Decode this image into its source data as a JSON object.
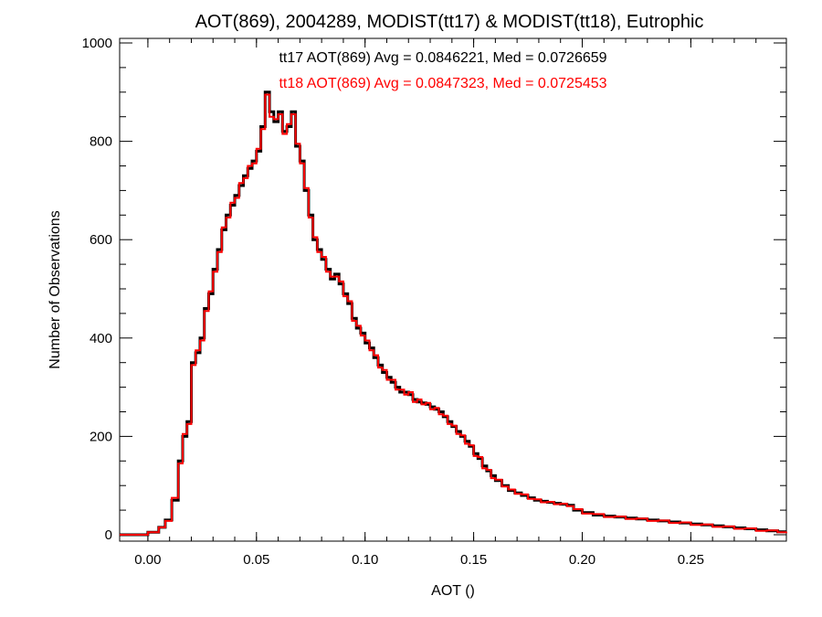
{
  "chart_data": {
    "type": "line",
    "step": true,
    "title": "AOT(869), 2004289, MODIST(tt17) & MODIST(tt18), Eutrophic",
    "xlabel": "AOT ()",
    "ylabel": "Number of Observations",
    "xlim": [
      -0.013,
      0.294
    ],
    "ylim": [
      0,
      1000
    ],
    "x_ticks": [
      0.0,
      0.05,
      0.1,
      0.15,
      0.2,
      0.25
    ],
    "x_tick_labels": [
      "0.00",
      "0.05",
      "0.10",
      "0.15",
      "0.20",
      "0.25"
    ],
    "y_ticks": [
      0,
      200,
      400,
      600,
      800,
      1000
    ],
    "y_tick_labels": [
      "0",
      "200",
      "400",
      "600",
      "800",
      "1000"
    ],
    "grid": false,
    "colors": {
      "tt17": "#000000",
      "tt18": "#ff0000"
    },
    "annotations": [
      {
        "text": "tt17 AOT(869) Avg = 0.0846221, Med = 0.0726659",
        "color": "#000000"
      },
      {
        "text": "tt18 AOT(869) Avg = 0.0847323, Med = 0.0725453",
        "color": "#ff0000"
      }
    ],
    "series": [
      {
        "key": "tt17",
        "color": "#000000",
        "x": [
          -0.013,
          -0.005,
          0.0,
          0.005,
          0.008,
          0.011,
          0.014,
          0.016,
          0.018,
          0.02,
          0.022,
          0.024,
          0.026,
          0.028,
          0.03,
          0.032,
          0.034,
          0.036,
          0.038,
          0.04,
          0.042,
          0.044,
          0.046,
          0.048,
          0.05,
          0.052,
          0.054,
          0.056,
          0.058,
          0.06,
          0.062,
          0.064,
          0.066,
          0.068,
          0.07,
          0.072,
          0.074,
          0.076,
          0.078,
          0.08,
          0.082,
          0.084,
          0.086,
          0.088,
          0.09,
          0.092,
          0.094,
          0.096,
          0.098,
          0.1,
          0.102,
          0.104,
          0.106,
          0.108,
          0.11,
          0.112,
          0.114,
          0.116,
          0.118,
          0.12,
          0.122,
          0.124,
          0.126,
          0.128,
          0.13,
          0.132,
          0.134,
          0.136,
          0.138,
          0.14,
          0.142,
          0.144,
          0.146,
          0.148,
          0.15,
          0.152,
          0.154,
          0.156,
          0.158,
          0.16,
          0.163,
          0.166,
          0.169,
          0.172,
          0.175,
          0.178,
          0.181,
          0.184,
          0.187,
          0.19,
          0.193,
          0.196,
          0.2,
          0.205,
          0.21,
          0.215,
          0.22,
          0.225,
          0.23,
          0.235,
          0.24,
          0.245,
          0.25,
          0.255,
          0.26,
          0.265,
          0.27,
          0.275,
          0.28,
          0.285,
          0.29,
          0.294
        ],
        "values": [
          0,
          0,
          5,
          15,
          30,
          70,
          150,
          200,
          230,
          350,
          370,
          400,
          460,
          490,
          540,
          580,
          620,
          650,
          670,
          690,
          710,
          730,
          745,
          760,
          780,
          830,
          900,
          860,
          840,
          860,
          820,
          830,
          860,
          790,
          760,
          700,
          650,
          600,
          580,
          560,
          540,
          520,
          530,
          510,
          490,
          470,
          440,
          420,
          410,
          390,
          380,
          360,
          345,
          330,
          320,
          310,
          300,
          290,
          290,
          285,
          275,
          270,
          268,
          265,
          260,
          255,
          250,
          240,
          230,
          220,
          210,
          200,
          190,
          180,
          165,
          155,
          140,
          130,
          120,
          110,
          100,
          90,
          85,
          80,
          75,
          70,
          68,
          66,
          64,
          62,
          60,
          50,
          45,
          40,
          38,
          36,
          34,
          32,
          30,
          28,
          26,
          24,
          22,
          20,
          18,
          16,
          14,
          12,
          10,
          8,
          6,
          6
        ]
      },
      {
        "key": "tt18",
        "color": "#ff0000",
        "x": [
          -0.013,
          -0.005,
          0.0,
          0.005,
          0.008,
          0.011,
          0.014,
          0.016,
          0.018,
          0.02,
          0.022,
          0.024,
          0.026,
          0.028,
          0.03,
          0.032,
          0.034,
          0.036,
          0.038,
          0.04,
          0.042,
          0.044,
          0.046,
          0.048,
          0.05,
          0.052,
          0.054,
          0.056,
          0.058,
          0.06,
          0.062,
          0.064,
          0.066,
          0.068,
          0.07,
          0.072,
          0.074,
          0.076,
          0.078,
          0.08,
          0.082,
          0.084,
          0.086,
          0.088,
          0.09,
          0.092,
          0.094,
          0.096,
          0.098,
          0.1,
          0.102,
          0.104,
          0.106,
          0.108,
          0.11,
          0.112,
          0.114,
          0.116,
          0.118,
          0.12,
          0.122,
          0.124,
          0.126,
          0.128,
          0.13,
          0.132,
          0.134,
          0.136,
          0.138,
          0.14,
          0.142,
          0.144,
          0.146,
          0.148,
          0.15,
          0.152,
          0.154,
          0.156,
          0.158,
          0.16,
          0.163,
          0.166,
          0.169,
          0.172,
          0.175,
          0.178,
          0.181,
          0.184,
          0.187,
          0.19,
          0.193,
          0.196,
          0.2,
          0.205,
          0.21,
          0.215,
          0.22,
          0.225,
          0.23,
          0.235,
          0.24,
          0.245,
          0.25,
          0.255,
          0.26,
          0.265,
          0.27,
          0.275,
          0.28,
          0.285,
          0.29,
          0.294
        ],
        "values": [
          0,
          0,
          5,
          15,
          28,
          75,
          145,
          205,
          225,
          345,
          375,
          395,
          455,
          495,
          535,
          575,
          625,
          645,
          675,
          685,
          715,
          725,
          750,
          755,
          785,
          825,
          895,
          850,
          845,
          855,
          815,
          835,
          855,
          795,
          755,
          705,
          645,
          605,
          575,
          565,
          535,
          525,
          525,
          515,
          485,
          475,
          435,
          425,
          405,
          395,
          375,
          365,
          340,
          335,
          315,
          315,
          295,
          295,
          285,
          290,
          270,
          275,
          265,
          268,
          255,
          258,
          245,
          242,
          225,
          222,
          205,
          202,
          185,
          182,
          160,
          158,
          135,
          132,
          115,
          112,
          98,
          92,
          83,
          82,
          73,
          72,
          66,
          67,
          62,
          63,
          58,
          52,
          43,
          42,
          36,
          37,
          32,
          33,
          28,
          29,
          24,
          25,
          20,
          21,
          16,
          17,
          12,
          13,
          8,
          9,
          5,
          6
        ]
      }
    ]
  }
}
